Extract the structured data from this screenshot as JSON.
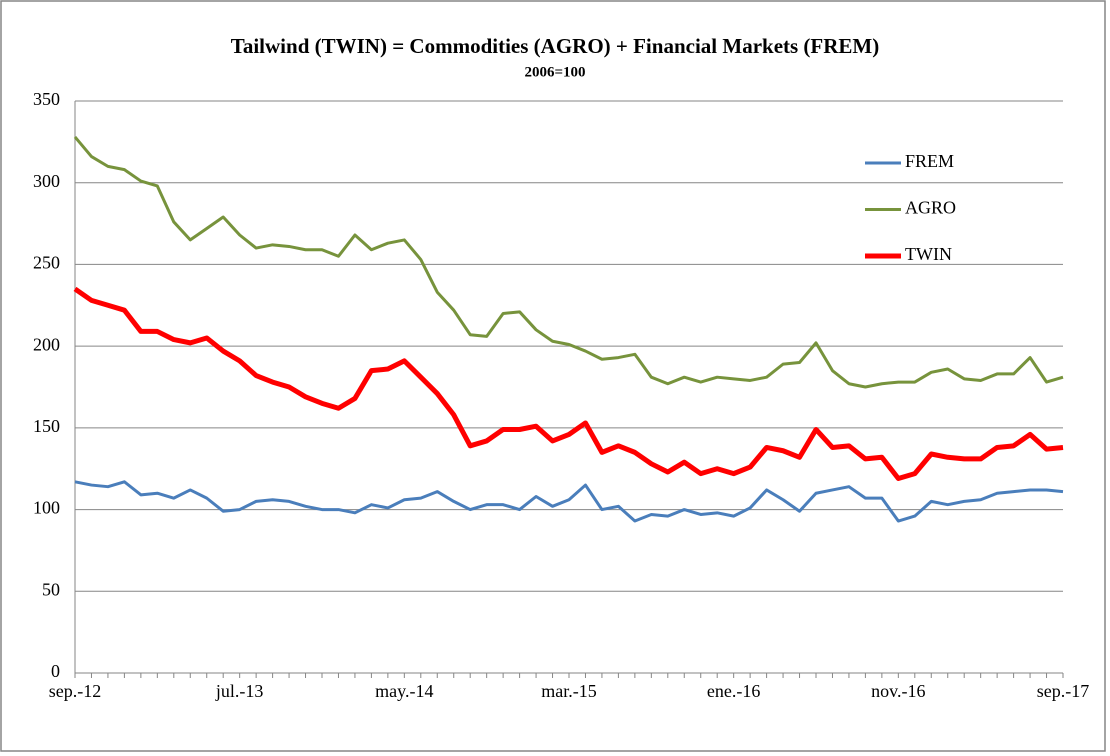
{
  "chart_data": {
    "type": "line",
    "title": "Tailwind (TWIN) = Commodities (AGRO) + Financial Markets (FREM)",
    "subtitle": "2006=100",
    "categories": [
      "sep.-12",
      null,
      null,
      null,
      null,
      null,
      null,
      null,
      null,
      null,
      "jul.-13",
      null,
      null,
      null,
      null,
      null,
      null,
      null,
      null,
      null,
      "may.-14",
      null,
      null,
      null,
      null,
      null,
      null,
      null,
      null,
      null,
      "mar.-15",
      null,
      null,
      null,
      null,
      null,
      null,
      null,
      null,
      null,
      "ene.-16",
      null,
      null,
      null,
      null,
      null,
      null,
      null,
      null,
      null,
      "nov.-16",
      null,
      null,
      null,
      null,
      null,
      null,
      null,
      null,
      null,
      "sep.-17"
    ],
    "series": [
      {
        "name": "FREM",
        "color": "#4a7ebb",
        "linewidth": 3,
        "values": [
          117,
          115,
          114,
          117,
          109,
          110,
          107,
          112,
          107,
          99,
          100,
          105,
          106,
          105,
          102,
          100,
          100,
          98,
          103,
          101,
          106,
          107,
          111,
          105,
          100,
          103,
          103,
          100,
          108,
          102,
          106,
          115,
          100,
          102,
          93,
          97,
          96,
          100,
          97,
          98,
          96,
          101,
          112,
          106,
          99,
          110,
          112,
          114,
          107,
          107,
          93,
          96,
          105,
          103,
          105,
          106,
          110,
          111,
          112,
          112,
          111
        ]
      },
      {
        "name": "AGRO",
        "color": "#77933c",
        "linewidth": 3,
        "values": [
          328,
          316,
          310,
          308,
          301,
          298,
          276,
          265,
          272,
          279,
          268,
          260,
          262,
          261,
          259,
          259,
          255,
          268,
          259,
          263,
          265,
          253,
          233,
          222,
          207,
          206,
          220,
          221,
          210,
          203,
          201,
          197,
          192,
          193,
          195,
          181,
          177,
          181,
          178,
          181,
          180,
          179,
          181,
          189,
          190,
          202,
          185,
          177,
          175,
          177,
          178,
          178,
          184,
          186,
          180,
          179,
          183,
          183,
          193,
          178,
          181
        ]
      },
      {
        "name": "TWIN",
        "color": "#ff0000",
        "linewidth": 5,
        "values": [
          235,
          228,
          225,
          222,
          209,
          209,
          204,
          202,
          205,
          197,
          191,
          182,
          178,
          175,
          169,
          165,
          162,
          168,
          185,
          186,
          191,
          181,
          171,
          158,
          139,
          142,
          149,
          149,
          151,
          142,
          146,
          153,
          135,
          139,
          135,
          128,
          123,
          129,
          122,
          125,
          122,
          126,
          138,
          136,
          132,
          149,
          138,
          139,
          131,
          132,
          119,
          122,
          134,
          132,
          131,
          131,
          138,
          139,
          146,
          137,
          138
        ]
      }
    ],
    "ylim": [
      0,
      350
    ],
    "yticks": [
      0,
      50,
      100,
      150,
      200,
      250,
      300,
      350
    ],
    "grid": true,
    "legend": "upper right"
  }
}
